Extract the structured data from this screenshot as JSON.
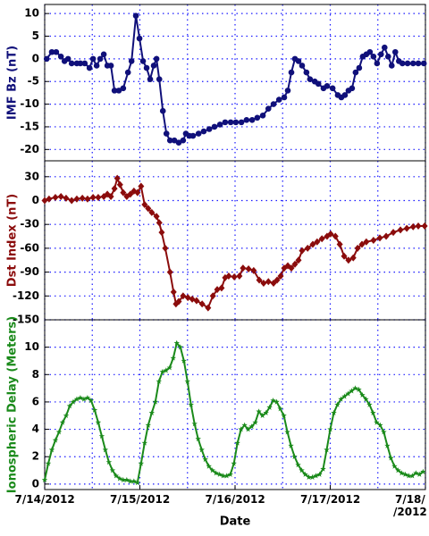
{
  "chart_data": [
    {
      "type": "line",
      "ylabel": "IMF Bz (nT)",
      "color": "#10107a",
      "marker": "circle",
      "ylim": [
        -22.5,
        12
      ],
      "yticks": [
        10,
        5,
        0,
        -5,
        -10,
        -15,
        -20
      ],
      "x": [
        0.5,
        1.8,
        2.9,
        4.1,
        5,
        5.9,
        6.8,
        8.1,
        9,
        10.1,
        11.3,
        12.2,
        13.1,
        14,
        14.9,
        15.8,
        16.7,
        17.6,
        18.7,
        19.8,
        21,
        21.9,
        23,
        23.9,
        24.8,
        25.7,
        26.6,
        27.5,
        28.2,
        28.9,
        29.8,
        30.7,
        31.6,
        32.7,
        33.8,
        34.9,
        35.6,
        36.5,
        37.4,
        38.8,
        40.1,
        41.5,
        42.8,
        44.2,
        45.5,
        46.9,
        48.2,
        49.6,
        50.9,
        52.3,
        53.6,
        55,
        56.4,
        57.7,
        59.1,
        60.4,
        61.3,
        62.2,
        63.1,
        64,
        64.9,
        66,
        66.9,
        68.1,
        69,
        70.3,
        71.2,
        72.6,
        73.9,
        74.8,
        75.7,
        76.6,
        77.5,
        78.4,
        79.3,
        80.2,
        81.1,
        82,
        82.9,
        83.8,
        84.8,
        85.7,
        86.6,
        87.5,
        88.4,
        89.3,
        90.2,
        91.5,
        92.9,
        94.2,
        95.6
      ],
      "values": [
        0,
        1.5,
        1.5,
        0.5,
        -0.5,
        0,
        -1,
        -1,
        -1,
        -1,
        -2,
        0,
        -1.5,
        0,
        1,
        -1.5,
        -1.5,
        -7,
        -7,
        -6.5,
        -3,
        -0.5,
        9.5,
        4.5,
        -0.5,
        -2,
        -4.5,
        -1.5,
        0,
        -4.5,
        -11.5,
        -16.5,
        -18,
        -18,
        -18.5,
        -18,
        -16.5,
        -17,
        -17,
        -16.5,
        -16,
        -15.5,
        -15,
        -14.5,
        -14,
        -14,
        -14,
        -14,
        -13.5,
        -13.5,
        -13,
        -12.5,
        -11,
        -10,
        -9,
        -8.5,
        -7,
        -3,
        0,
        -0.5,
        -1.5,
        -3,
        -4.5,
        -5,
        -5.5,
        -6.5,
        -6,
        -6.5,
        -8,
        -8.5,
        -8,
        -7,
        -6.5,
        -3,
        -2,
        0.5,
        1,
        1.5,
        0.5,
        -1,
        1,
        2.5,
        0.5,
        -1.5,
        1.5,
        -0.5,
        -1,
        -1,
        -1,
        -1,
        -1
      ]
    },
    {
      "type": "line",
      "ylabel": "Dst Index (nT)",
      "color": "#8b0c0c",
      "marker": "diamond",
      "ylim": [
        -150,
        50
      ],
      "yticks": [
        30,
        0,
        -30,
        -60,
        -90,
        -120,
        -150
      ],
      "x": [
        0,
        1.1,
        2.7,
        4.1,
        5.4,
        6.8,
        8.1,
        9.5,
        10.8,
        12.2,
        13.5,
        14.9,
        15.8,
        16.7,
        17.6,
        18.3,
        19,
        19.8,
        20.7,
        21.6,
        22.5,
        23.4,
        24.3,
        25.2,
        26.1,
        27,
        28.2,
        28.9,
        29.5,
        30.4,
        31.6,
        32.5,
        33.1,
        33.8,
        34.9,
        36.1,
        37.2,
        38.3,
        39.7,
        41.2,
        42.4,
        43.5,
        44.6,
        45.5,
        46.4,
        47.8,
        49.1,
        50,
        51.4,
        52.7,
        54.1,
        55.2,
        56.4,
        57.7,
        58.6,
        59.5,
        60.4,
        61.3,
        62.2,
        63.1,
        64,
        64.9,
        66.3,
        67.6,
        68.7,
        69.9,
        71.2,
        72.1,
        73.3,
        74.4,
        75.5,
        76.6,
        77.8,
        78.9,
        80,
        81.1,
        82.9,
        84.5,
        86.1,
        87.9,
        89.7,
        91.3,
        92.9,
        94.2,
        95.8
      ],
      "values": [
        0,
        2,
        4,
        5,
        3,
        0,
        2,
        3,
        2,
        4,
        4,
        5,
        8,
        5,
        15,
        28,
        20,
        10,
        5,
        8,
        12,
        10,
        18,
        -5,
        -10,
        -15,
        -20,
        -28,
        -40,
        -60,
        -90,
        -115,
        -130,
        -127,
        -120,
        -122,
        -124,
        -126,
        -130,
        -135,
        -120,
        -112,
        -110,
        -97,
        -95,
        -96,
        -95,
        -85,
        -86,
        -88,
        -100,
        -104,
        -102,
        -104,
        -100,
        -95,
        -85,
        -82,
        -85,
        -80,
        -75,
        -63,
        -60,
        -55,
        -52,
        -48,
        -45,
        -42,
        -45,
        -55,
        -70,
        -75,
        -72,
        -60,
        -55,
        -52,
        -50,
        -47,
        -45,
        -40,
        -37,
        -35,
        -33,
        -32,
        -32
      ]
    },
    {
      "type": "line",
      "ylabel": "Ionospheric Delay (Meters)",
      "color": "#1a8a1a",
      "marker": "star",
      "ylim": [
        -0.4,
        12
      ],
      "yticks": [
        0,
        2,
        4,
        6,
        8,
        10
      ],
      "xlabel": "Date",
      "xlim": [
        0,
        96
      ],
      "xticks": [
        {
          "value": 0,
          "label": "7/14/2012"
        },
        {
          "value": 24,
          "label": "7/15/2012"
        },
        {
          "value": 48,
          "label": "7/16/2012"
        },
        {
          "value": 72,
          "label": "7/17/2012"
        },
        {
          "value": 96,
          "label": "7/18/\n/2012"
        }
      ],
      "xminor": [
        12,
        36,
        60,
        84
      ],
      "x": [
        0,
        0.9,
        1.8,
        2.7,
        3.6,
        4.5,
        5.4,
        6.3,
        7.2,
        8.1,
        9,
        9.9,
        10.8,
        11.7,
        12.6,
        13.5,
        14.4,
        15.3,
        16.2,
        17.1,
        18,
        18.9,
        19.8,
        20.7,
        21.6,
        22.5,
        23.4,
        24.3,
        25.2,
        26.1,
        27,
        27.9,
        28.8,
        29.7,
        30.6,
        31.5,
        32.4,
        33.3,
        34.2,
        35.1,
        36,
        36.9,
        37.8,
        38.7,
        39.6,
        40.5,
        41.4,
        42.3,
        43.2,
        44.1,
        45,
        45.9,
        46.8,
        47.7,
        48.6,
        49.5,
        50.4,
        51.3,
        52.2,
        53.1,
        54,
        54.9,
        55.8,
        56.7,
        57.6,
        58.5,
        59.4,
        60.3,
        61.2,
        62.1,
        63,
        63.9,
        64.8,
        65.7,
        66.6,
        67.5,
        68.4,
        69.3,
        70.2,
        71.1,
        72,
        72.9,
        73.8,
        74.7,
        75.6,
        76.5,
        77.4,
        78.3,
        79.2,
        80.1,
        81,
        81.9,
        82.8,
        83.7,
        84.6,
        85.5,
        86.4,
        87.3,
        88.2,
        89.1,
        90,
        90.9,
        91.8,
        92.7,
        93.6,
        94.5,
        95.4
      ],
      "values": [
        0.3,
        1.5,
        2.5,
        3.2,
        3.8,
        4.5,
        5,
        5.7,
        6,
        6.2,
        6.3,
        6.2,
        6.3,
        6.1,
        5.4,
        4.5,
        3.5,
        2.5,
        1.6,
        1,
        0.6,
        0.4,
        0.3,
        0.3,
        0.2,
        0.2,
        0.1,
        1.5,
        3,
        4.3,
        5.2,
        6,
        7.5,
        8.2,
        8.3,
        8.5,
        9.2,
        10.3,
        10,
        9,
        7.5,
        5.8,
        4.4,
        3.3,
        2.5,
        1.8,
        1.3,
        1,
        0.8,
        0.7,
        0.6,
        0.6,
        0.7,
        1.5,
        3,
        4,
        4.3,
        4,
        4.2,
        4.5,
        5.3,
        5,
        5.2,
        5.6,
        6.1,
        6,
        5.5,
        5,
        3.8,
        2.8,
        2,
        1.4,
        1,
        0.7,
        0.5,
        0.5,
        0.6,
        0.7,
        1.1,
        2.5,
        4,
        5.2,
        5.8,
        6.2,
        6.4,
        6.6,
        6.8,
        7,
        6.9,
        6.5,
        6.2,
        5.8,
        5.2,
        4.5,
        4.3,
        3.8,
        2.8,
        1.9,
        1.3,
        1,
        0.8,
        0.7,
        0.6,
        0.6,
        0.8,
        0.7,
        0.9
      ]
    }
  ]
}
